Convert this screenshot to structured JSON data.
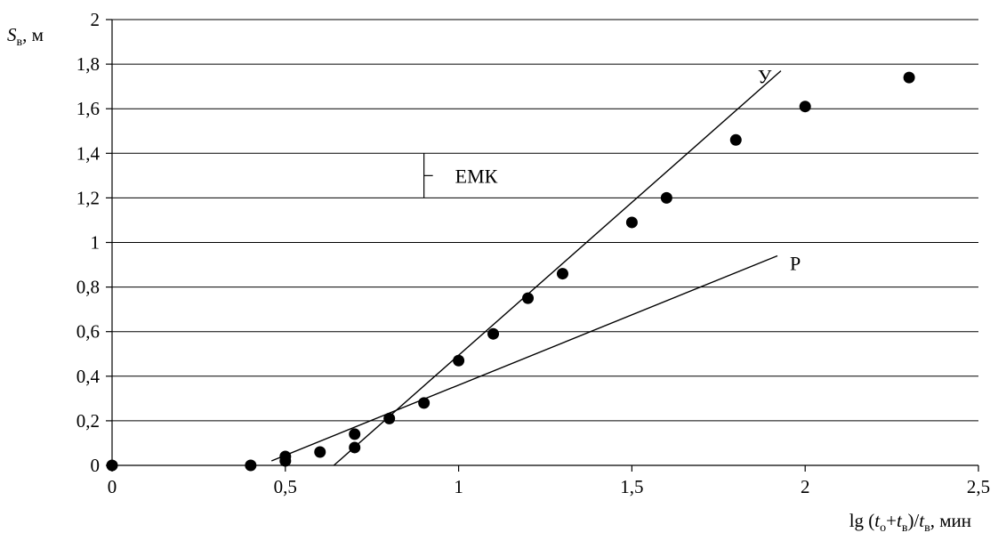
{
  "chart_data": {
    "type": "scatter",
    "title": "",
    "xlabel": {
      "prefix": "lg (",
      "t1": "t",
      "t1_sub": "о",
      "plus": "+",
      "t2": "t",
      "t2_sub": "в",
      "mid": ")/",
      "t3": "t",
      "t3_sub": "в",
      "suffix": ", мин"
    },
    "ylabel": {
      "s": "S",
      "s_sub": "в",
      "suffix": ", м"
    },
    "xlim": [
      0,
      2.5
    ],
    "ylim": [
      0,
      2
    ],
    "x_ticks": [
      0,
      0.5,
      1,
      1.5,
      2,
      2.5
    ],
    "x_tick_labels": [
      "0",
      "0,5",
      "1",
      "1,5",
      "2",
      "2,5"
    ],
    "y_ticks": [
      0,
      0.2,
      0.4,
      0.6,
      0.8,
      1,
      1.2,
      1.4,
      1.6,
      1.8,
      2
    ],
    "y_tick_labels": [
      "0",
      "0,2",
      "0,4",
      "0,6",
      "0,8",
      "1",
      "1,2",
      "1,4",
      "1,6",
      "1,8",
      "2"
    ],
    "grid": "horizontal",
    "points": [
      {
        "x": 0,
        "y": 0
      },
      {
        "x": 0.4,
        "y": 0
      },
      {
        "x": 0.5,
        "y": 0.02
      },
      {
        "x": 0.5,
        "y": 0.04
      },
      {
        "x": 0.6,
        "y": 0.06
      },
      {
        "x": 0.7,
        "y": 0.08
      },
      {
        "x": 0.7,
        "y": 0.14
      },
      {
        "x": 0.8,
        "y": 0.21
      },
      {
        "x": 0.9,
        "y": 0.28
      },
      {
        "x": 1.0,
        "y": 0.47
      },
      {
        "x": 1.1,
        "y": 0.59
      },
      {
        "x": 1.2,
        "y": 0.75
      },
      {
        "x": 1.3,
        "y": 0.86
      },
      {
        "x": 1.5,
        "y": 1.09
      },
      {
        "x": 1.6,
        "y": 1.2
      },
      {
        "x": 1.8,
        "y": 1.46
      },
      {
        "x": 2.0,
        "y": 1.61
      },
      {
        "x": 2.3,
        "y": 1.74
      }
    ],
    "lines": [
      {
        "label": "У",
        "x1": 0.64,
        "y1": 0,
        "x2": 1.93,
        "y2": 1.77
      },
      {
        "label": "Р",
        "x1": 0.46,
        "y1": 0.02,
        "x2": 1.92,
        "y2": 0.94
      }
    ],
    "annotation": {
      "label": "ЕМК",
      "x": 0.9,
      "y_low": 1.2,
      "y_high": 1.4,
      "y_mark": 1.3
    }
  }
}
